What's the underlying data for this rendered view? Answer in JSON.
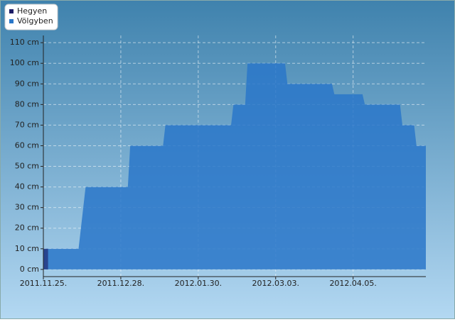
{
  "chart_data": {
    "type": "area",
    "x": [
      "2011.11.25",
      "2011.11.27",
      "2011.12.10",
      "2011.12.11",
      "2011.12.12",
      "2011.12.13",
      "2011.12.31",
      "2012.01.01",
      "2012.01.15",
      "2012.01.16",
      "2012.02.13",
      "2012.02.14",
      "2012.02.19",
      "2012.02.20",
      "2012.03.07",
      "2012.03.08",
      "2012.03.27",
      "2012.03.28",
      "2012.04.09",
      "2012.04.10",
      "2012.04.25",
      "2012.04.26",
      "2012.05.01",
      "2012.05.02",
      "2012.05.06"
    ],
    "series": [
      {
        "name": "Hegyen",
        "color": "#1c1c66",
        "values": [
          10,
          10,
          null,
          null,
          null,
          null,
          null,
          null,
          null,
          null,
          null,
          null,
          null,
          null,
          null,
          null,
          null,
          null,
          null,
          null,
          null,
          null,
          null,
          null,
          null
        ]
      },
      {
        "name": "Völgyben",
        "color": "#2a77c9",
        "values": [
          10,
          10,
          10,
          20,
          30,
          40,
          40,
          60,
          60,
          70,
          70,
          80,
          80,
          100,
          100,
          90,
          90,
          85,
          85,
          80,
          80,
          70,
          70,
          60,
          60
        ]
      }
    ],
    "xlim": [
      "2011.11.25",
      "2012.05.06"
    ],
    "xticks": [
      {
        "value": "2011.11.25",
        "label": "2011.11.25."
      },
      {
        "value": "2011.12.28",
        "label": "2011.12.28."
      },
      {
        "value": "2012.01.30",
        "label": "2012.01.30."
      },
      {
        "value": "2012.03.03",
        "label": "2012.03.03."
      },
      {
        "value": "2012.04.05",
        "label": "2012.04.05."
      }
    ],
    "ylim": [
      -3.5,
      113.5
    ],
    "yticks": [
      {
        "value": 0,
        "label": "0 cm"
      },
      {
        "value": 10,
        "label": "10 cm"
      },
      {
        "value": 20,
        "label": "20 cm"
      },
      {
        "value": 30,
        "label": "30 cm"
      },
      {
        "value": 40,
        "label": "40 cm"
      },
      {
        "value": 50,
        "label": "50 cm"
      },
      {
        "value": 60,
        "label": "60 cm"
      },
      {
        "value": 70,
        "label": "70 cm"
      },
      {
        "value": 80,
        "label": "80 cm"
      },
      {
        "value": 90,
        "label": "90 cm"
      },
      {
        "value": 100,
        "label": "100 cm"
      },
      {
        "value": 110,
        "label": "110 cm"
      }
    ],
    "grid": true,
    "legend": "top-left"
  }
}
